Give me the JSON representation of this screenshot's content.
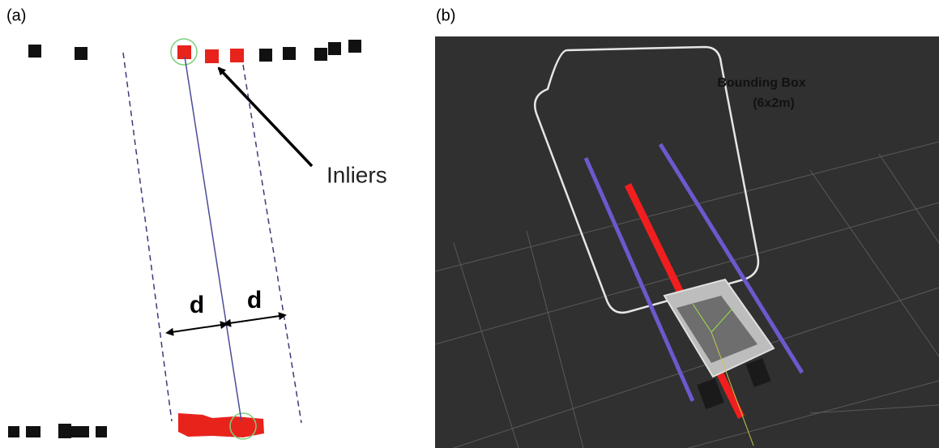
{
  "panels": [
    {
      "label": "(a)",
      "annotation": "Inliers",
      "distance_labels": [
        "d",
        "d"
      ]
    },
    {
      "label": "(b)",
      "annotation_lines": [
        "Bounding Box",
        "(6x2m)"
      ]
    }
  ]
}
